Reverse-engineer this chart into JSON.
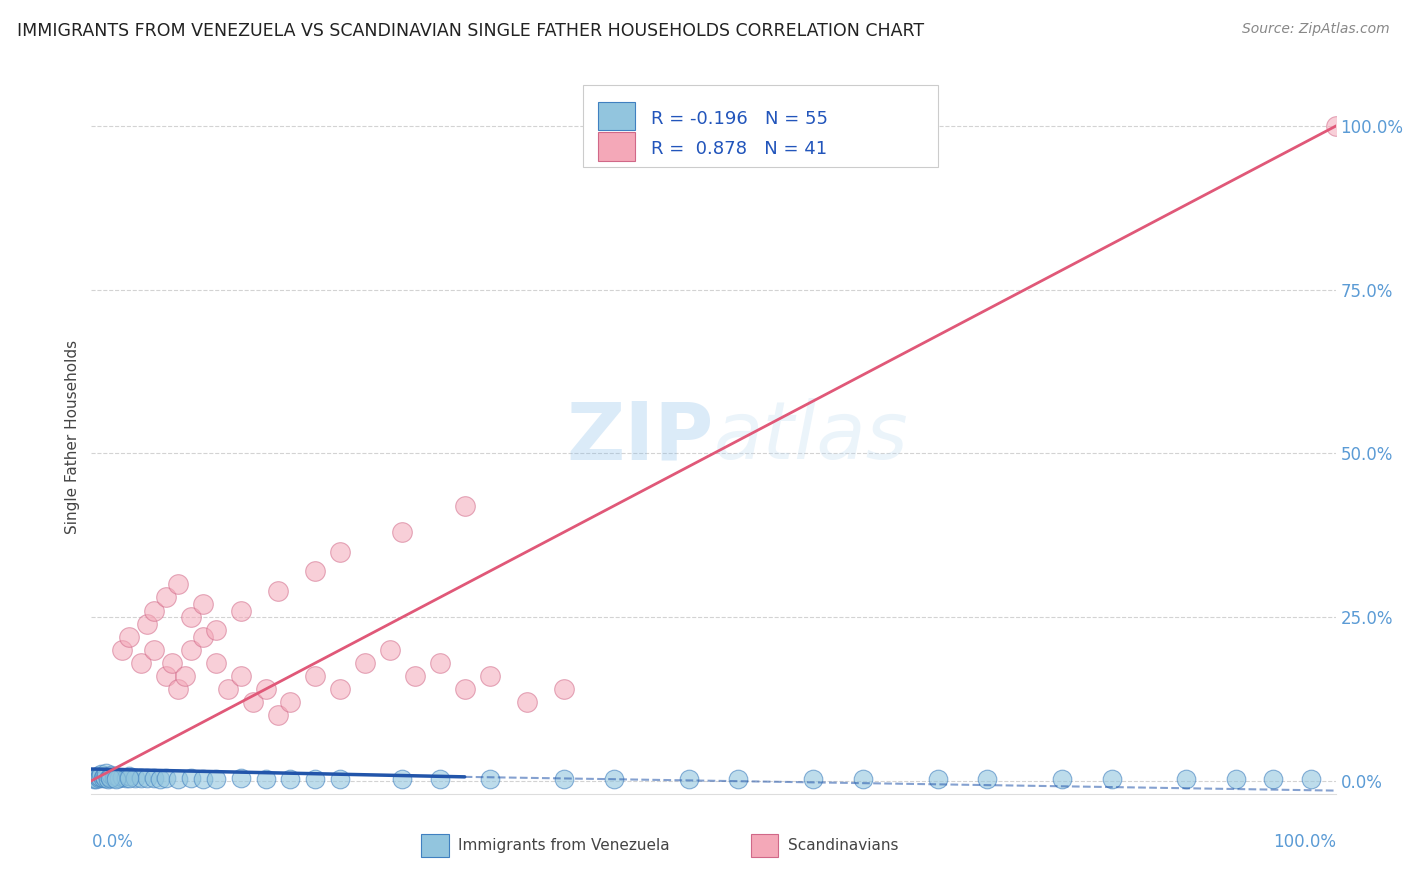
{
  "title": "IMMIGRANTS FROM VENEZUELA VS SCANDINAVIAN SINGLE FATHER HOUSEHOLDS CORRELATION CHART",
  "source": "Source: ZipAtlas.com",
  "ylabel": "Single Father Households",
  "watermark": "ZIPatlas",
  "blue_scatter_x": [
    0.2,
    0.3,
    0.4,
    0.5,
    0.6,
    0.7,
    0.8,
    0.9,
    1.0,
    1.1,
    1.2,
    1.3,
    1.5,
    1.6,
    1.8,
    2.0,
    2.2,
    2.5,
    2.8,
    3.0,
    3.5,
    4.0,
    4.5,
    5.0,
    5.5,
    6.0,
    7.0,
    8.0,
    9.0,
    10.0,
    12.0,
    14.0,
    16.0,
    18.0,
    20.0,
    25.0,
    28.0,
    32.0,
    38.0,
    42.0,
    48.0,
    52.0,
    58.0,
    62.0,
    68.0,
    72.0,
    78.0,
    82.0,
    88.0,
    92.0,
    95.0,
    98.0,
    1.5,
    2.0,
    3.0
  ],
  "blue_scatter_y": [
    0.3,
    0.5,
    0.3,
    0.8,
    0.4,
    0.6,
    1.0,
    0.4,
    0.8,
    0.5,
    1.2,
    0.3,
    0.6,
    0.9,
    0.5,
    0.8,
    0.4,
    0.6,
    0.4,
    0.7,
    0.4,
    0.5,
    0.4,
    0.5,
    0.3,
    0.4,
    0.3,
    0.4,
    0.3,
    0.3,
    0.4,
    0.3,
    0.3,
    0.3,
    0.3,
    0.3,
    0.3,
    0.3,
    0.3,
    0.3,
    0.3,
    0.3,
    0.3,
    0.3,
    0.3,
    0.3,
    0.3,
    0.3,
    0.3,
    0.3,
    0.3,
    0.3,
    0.4,
    0.3,
    0.5
  ],
  "pink_scatter_x": [
    2.5,
    3.0,
    4.0,
    4.5,
    5.0,
    6.0,
    6.5,
    7.0,
    7.5,
    8.0,
    9.0,
    10.0,
    11.0,
    12.0,
    13.0,
    14.0,
    15.0,
    16.0,
    18.0,
    20.0,
    22.0,
    24.0,
    26.0,
    28.0,
    30.0,
    32.0,
    35.0,
    38.0,
    5.0,
    6.0,
    7.0,
    8.0,
    9.0,
    10.0,
    12.0,
    15.0,
    18.0,
    20.0,
    25.0,
    30.0,
    100.0
  ],
  "pink_scatter_y": [
    20.0,
    22.0,
    18.0,
    24.0,
    20.0,
    16.0,
    18.0,
    14.0,
    16.0,
    20.0,
    22.0,
    18.0,
    14.0,
    16.0,
    12.0,
    14.0,
    10.0,
    12.0,
    16.0,
    14.0,
    18.0,
    20.0,
    16.0,
    18.0,
    14.0,
    16.0,
    12.0,
    14.0,
    26.0,
    28.0,
    30.0,
    25.0,
    27.0,
    23.0,
    26.0,
    29.0,
    32.0,
    35.0,
    38.0,
    42.0,
    100.0
  ],
  "blue_color": "#92c5de",
  "blue_edge_color": "#4080c0",
  "blue_line_color": "#2255aa",
  "pink_color": "#f4a8b8",
  "pink_edge_color": "#d06888",
  "pink_line_color": "#e05878",
  "grid_color": "#cccccc",
  "title_color": "#222222",
  "source_color": "#888888",
  "axis_color": "#5b9bd5",
  "r_color": "#2255bb",
  "bg_color": "#ffffff",
  "yticks": [
    0,
    25,
    50,
    75,
    100
  ],
  "ytick_labels": [
    "0.0%",
    "25.0%",
    "50.0%",
    "75.0%",
    "100.0%"
  ],
  "xlim": [
    0,
    100
  ],
  "ylim": [
    -2,
    107
  ],
  "blue_R": "-0.196",
  "blue_N": "55",
  "pink_R": "0.878",
  "pink_N": "41",
  "leg1_label": "Immigrants from Venezuela",
  "leg2_label": "Scandinavians"
}
